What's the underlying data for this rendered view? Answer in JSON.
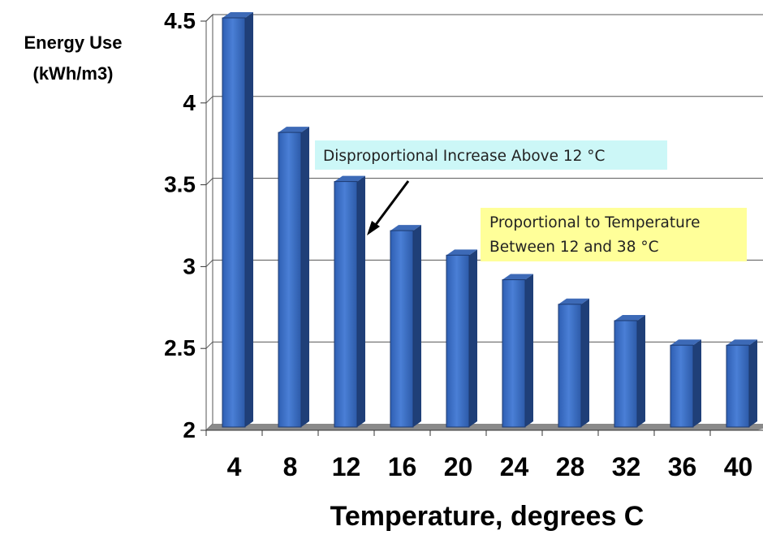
{
  "chart_data": {
    "type": "bar",
    "ylabel_lines": [
      "Energy Use",
      "(kWh/m3)"
    ],
    "xlabel": "Temperature, degrees C",
    "ylim": [
      2,
      4.5
    ],
    "yticks": [
      "2",
      "2.5",
      "3",
      "3.5",
      "4",
      "4.5"
    ],
    "categories": [
      "4",
      "8",
      "12",
      "16",
      "20",
      "24",
      "28",
      "32",
      "36",
      "40"
    ],
    "values": [
      4.5,
      3.8,
      3.5,
      3.2,
      3.05,
      2.9,
      2.75,
      2.65,
      2.5,
      2.5
    ],
    "grid": true,
    "bar_color": "#3b6fc4",
    "annotations": [
      {
        "lines": [
          "Disproportional Increase Above 12 °C"
        ],
        "background": "#ccf7f7"
      },
      {
        "lines": [
          "Proportional to Temperature",
          "Between 12 and 38 °C"
        ],
        "background": "#ffff99"
      }
    ]
  }
}
